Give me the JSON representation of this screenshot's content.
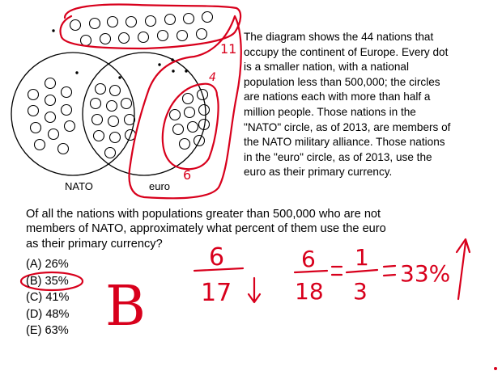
{
  "diagram": {
    "labels": {
      "nato": "NATO",
      "euro": "euro"
    },
    "ink_color": "#d8001c"
  },
  "passage": {
    "lines": [
      "The diagram shows the 44 nations that",
      "occupy the continent of Europe. Every dot",
      "is a smaller nation, with a national",
      "population less than 500,000; the circles",
      "are nations each with more than half a",
      "million people.  Those nations in the",
      "\"NATO\" circle, as of 2013, are members of",
      "the NATO military alliance.   Those nations",
      "in the \"euro\" circle, as of 2013, use the",
      "euro as their primary currency."
    ]
  },
  "question": {
    "lines": [
      "Of all the nations with populations greater than 500,000 who are not",
      "members of NATO, approximately what percent of them use the euro",
      "as their primary currency?"
    ],
    "choices": [
      "(A) 26%",
      "(B) 35%",
      "(C) 41%",
      "(D) 48%",
      "(E) 63%"
    ]
  },
  "handwriting": {
    "count_top": "11",
    "count_mid": "4",
    "count_low": "6",
    "answer_letter": "B",
    "frac1_num": "6",
    "frac1_den": "17",
    "frac2_num": "6",
    "frac2_den": "18",
    "frac3_num": "1",
    "frac3_den": "3",
    "percent": "33%"
  }
}
